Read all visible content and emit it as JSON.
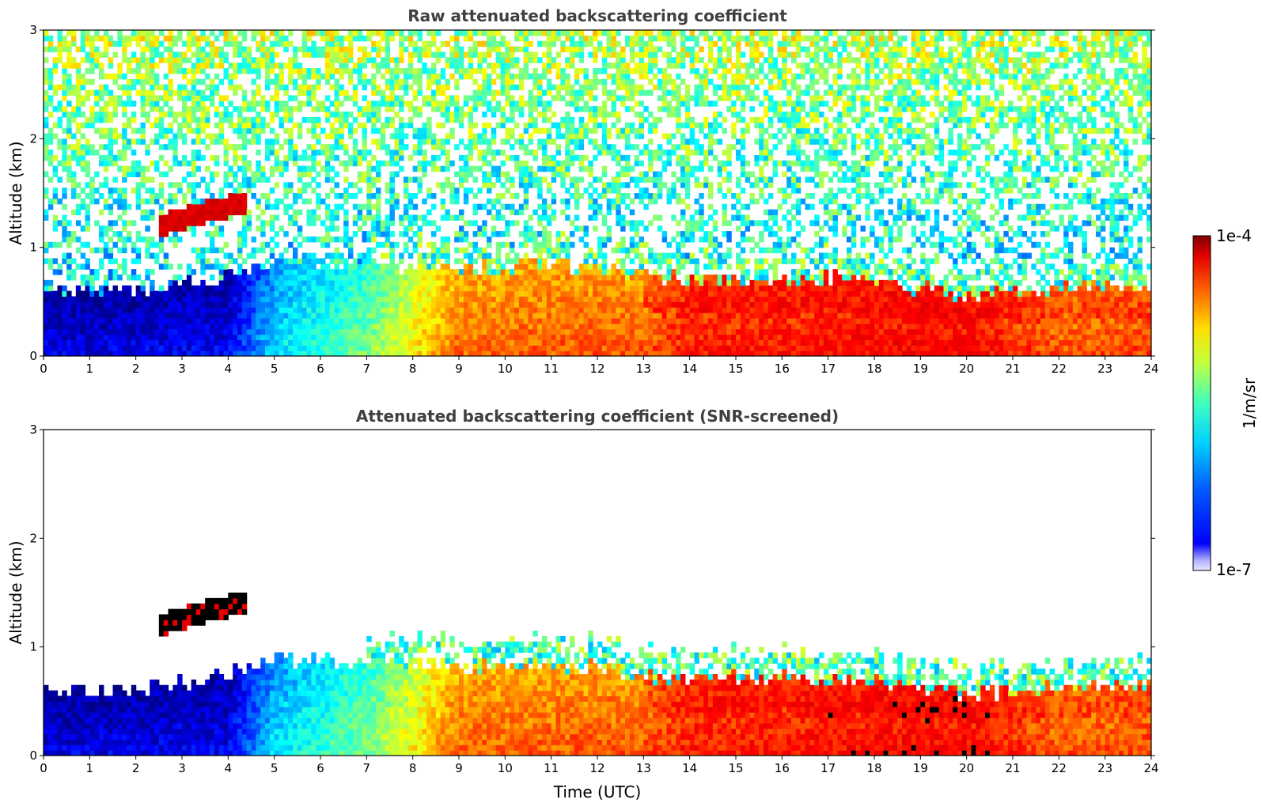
{
  "chart_data": [
    {
      "type": "heatmap",
      "title": "Raw attenuated backscattering coefficient",
      "xlabel": "",
      "ylabel": "Altitude (km)",
      "xlim": [
        0,
        24
      ],
      "ylim": [
        0,
        3
      ],
      "x_ticks": [
        "0",
        "1",
        "2",
        "3",
        "4",
        "5",
        "6",
        "7",
        "8",
        "9",
        "10",
        "11",
        "12",
        "13",
        "14",
        "15",
        "16",
        "17",
        "18",
        "19",
        "20",
        "21",
        "22",
        "23",
        "24"
      ],
      "y_ticks": [
        "0",
        "1",
        "2",
        "3"
      ],
      "screened": false,
      "features": {
        "boundary_layer_top_km": {
          "x": [
            0,
            2,
            4,
            5,
            7,
            9,
            11,
            13,
            14,
            16,
            18,
            20,
            22,
            24
          ],
          "y": [
            0.6,
            0.6,
            0.75,
            0.9,
            0.85,
            0.8,
            0.85,
            0.75,
            0.7,
            0.72,
            0.7,
            0.55,
            0.65,
            0.65
          ]
        },
        "cloud_layer": {
          "x_range": [
            2.5,
            4.4
          ],
          "alt_range_km": [
            1.1,
            1.6
          ]
        }
      }
    },
    {
      "type": "heatmap",
      "title": "Attenuated backscattering coefficient (SNR-screened)",
      "xlabel": "Time (UTC)",
      "ylabel": "Altitude (km)",
      "xlim": [
        0,
        24
      ],
      "ylim": [
        0,
        3
      ],
      "x_ticks": [
        "0",
        "1",
        "2",
        "3",
        "4",
        "5",
        "6",
        "7",
        "8",
        "9",
        "10",
        "11",
        "12",
        "13",
        "14",
        "15",
        "16",
        "17",
        "18",
        "19",
        "20",
        "21",
        "22",
        "23",
        "24"
      ],
      "y_ticks": [
        "0",
        "1",
        "2",
        "3"
      ],
      "screened": true
    }
  ],
  "colorbar": {
    "label": "1/m/sr",
    "max_label": "1e-4",
    "min_label": "1e-7",
    "scale": "log",
    "colormap": "jet",
    "range": [
      1e-07,
      0.0001
    ]
  }
}
